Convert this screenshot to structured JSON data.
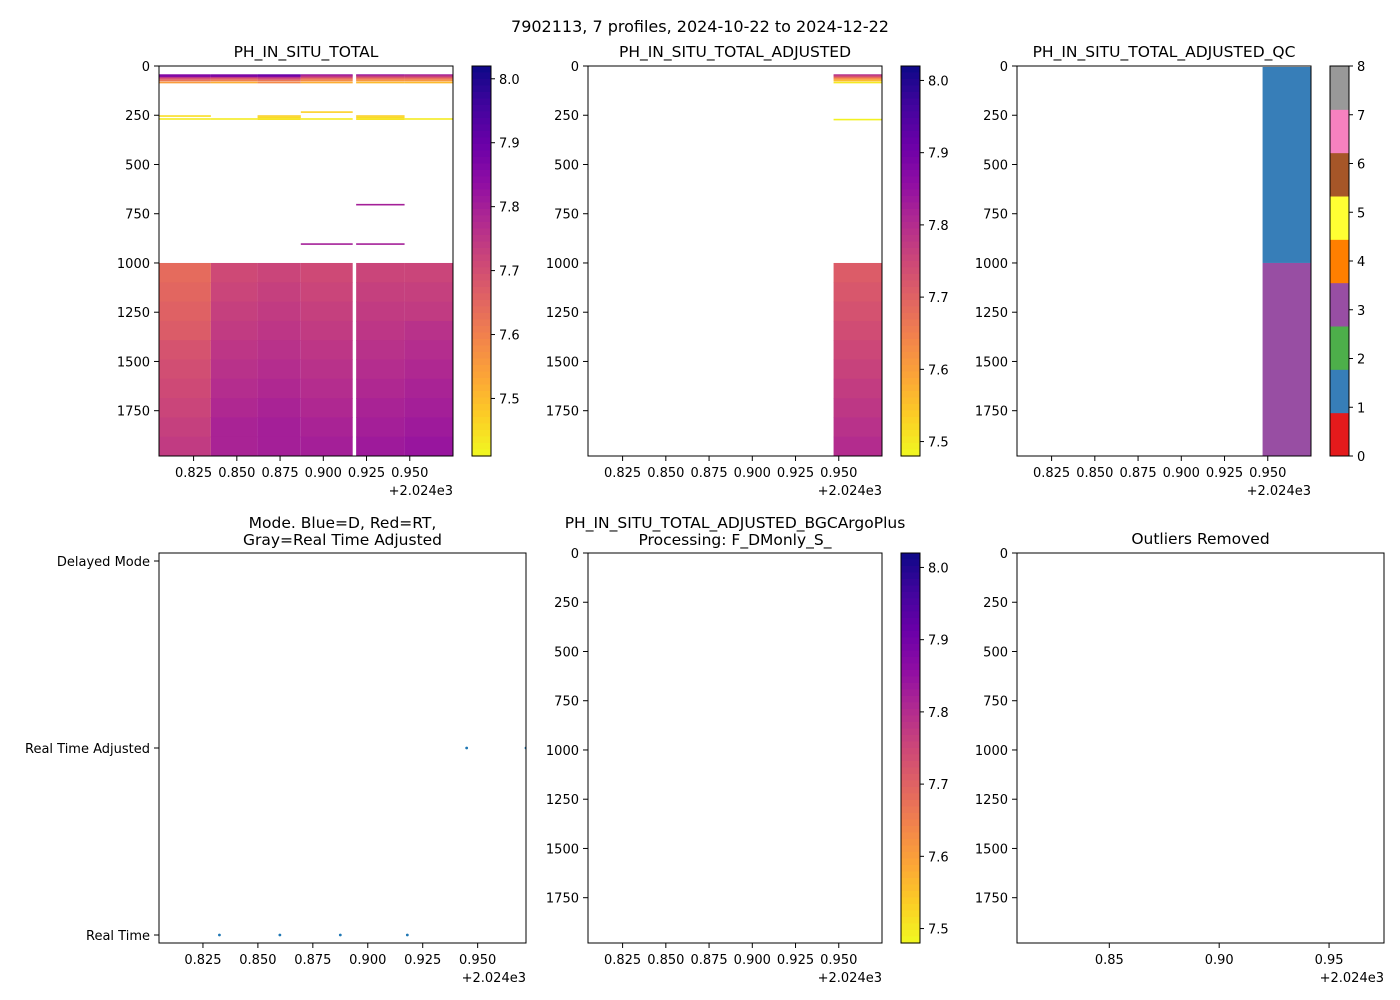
{
  "figure": {
    "suptitle": "7902113, 7 profiles, 2024-10-22 to 2024-12-22",
    "x_offset_label": "+2.024e3"
  },
  "chart_data": [
    {
      "id": "p1",
      "type": "heatmap",
      "title": "PH_IN_SITU_TOTAL",
      "xlim": [
        0.805,
        0.975
      ],
      "ylim": [
        1980,
        0
      ],
      "x_ticks": [
        "0.825",
        "0.850",
        "0.875",
        "0.900",
        "0.925",
        "0.950"
      ],
      "x_tick_values": [
        0.825,
        0.85,
        0.875,
        0.9,
        0.925,
        0.95
      ],
      "y_ticks": [
        "0",
        "250",
        "500",
        "750",
        "1000",
        "1250",
        "1500",
        "1750"
      ],
      "y_tick_values": [
        0,
        250,
        500,
        750,
        1000,
        1250,
        1500,
        1750
      ],
      "colorbar": {
        "cmap": "plasma_r",
        "vmin": 7.41,
        "vmax": 8.02,
        "ticks": [
          "7.5",
          "7.6",
          "7.7",
          "7.8",
          "7.9",
          "8.0"
        ],
        "tick_values": [
          7.5,
          7.6,
          7.7,
          7.8,
          7.9,
          8.0
        ]
      },
      "profiles": [
        {
          "x0": 0.805,
          "x1": 0.835,
          "lines": [
            [
              42,
              7.85
            ],
            [
              48,
              7.87
            ],
            [
              55,
              7.75
            ],
            [
              62,
              7.68
            ],
            [
              70,
              7.62
            ],
            [
              80,
              7.55
            ],
            [
              250,
              7.45
            ],
            [
              265,
              7.43
            ]
          ],
          "deep": [
            7.64,
            7.65,
            7.66,
            7.67,
            7.69,
            7.7,
            7.71,
            7.72,
            7.73,
            7.74
          ]
        },
        {
          "x0": 0.835,
          "x1": 0.862,
          "lines": [
            [
              42,
              7.86
            ],
            [
              48,
              7.88
            ],
            [
              55,
              7.74
            ],
            [
              62,
              7.66
            ],
            [
              70,
              7.6
            ],
            [
              80,
              7.52
            ],
            [
              265,
              7.43
            ]
          ],
          "deep": [
            7.71,
            7.72,
            7.73,
            7.74,
            7.75,
            7.76,
            7.77,
            7.78,
            7.79,
            7.79
          ]
        },
        {
          "x0": 0.862,
          "x1": 0.887,
          "lines": [
            [
              42,
              7.9
            ],
            [
              48,
              7.88
            ],
            [
              55,
              7.76
            ],
            [
              62,
              7.7
            ],
            [
              70,
              7.62
            ],
            [
              80,
              7.58
            ],
            [
              250,
              7.47
            ],
            [
              258,
              7.45
            ],
            [
              266,
              7.44
            ]
          ],
          "deep": [
            7.72,
            7.73,
            7.74,
            7.75,
            7.76,
            7.77,
            7.78,
            7.79,
            7.8,
            7.8
          ]
        },
        {
          "x0": 0.887,
          "x1": 0.917,
          "lines": [
            [
              42,
              7.82
            ],
            [
              48,
              7.76
            ],
            [
              55,
              7.7
            ],
            [
              62,
              7.63
            ],
            [
              70,
              7.58
            ],
            [
              80,
              7.52
            ],
            [
              230,
              7.47
            ],
            [
              265,
              7.43
            ],
            [
              900,
              7.8
            ]
          ],
          "deep": [
            7.71,
            7.72,
            7.73,
            7.74,
            7.75,
            7.76,
            7.77,
            7.78,
            7.79,
            7.8
          ]
        },
        {
          "x0": 0.919,
          "x1": 0.947,
          "lines": [
            [
              42,
              7.82
            ],
            [
              48,
              7.74
            ],
            [
              55,
              7.68
            ],
            [
              62,
              7.62
            ],
            [
              70,
              7.56
            ],
            [
              80,
              7.5
            ],
            [
              250,
              7.47
            ],
            [
              258,
              7.45
            ],
            [
              266,
              7.44
            ],
            [
              700,
              7.8
            ],
            [
              900,
              7.8
            ]
          ],
          "deep": [
            7.72,
            7.73,
            7.74,
            7.75,
            7.76,
            7.77,
            7.78,
            7.79,
            7.8,
            7.81
          ]
        },
        {
          "x0": 0.947,
          "x1": 0.975,
          "lines": [
            [
              42,
              7.8
            ],
            [
              48,
              7.74
            ],
            [
              55,
              7.68
            ],
            [
              62,
              7.62
            ],
            [
              70,
              7.56
            ],
            [
              80,
              7.5
            ],
            [
              265,
              7.43
            ]
          ],
          "deep": [
            7.72,
            7.73,
            7.74,
            7.76,
            7.77,
            7.78,
            7.79,
            7.8,
            7.81,
            7.82
          ]
        }
      ]
    },
    {
      "id": "p2",
      "type": "heatmap",
      "title": "PH_IN_SITU_TOTAL_ADJUSTED",
      "xlim": [
        0.805,
        0.975
      ],
      "ylim": [
        1980,
        0
      ],
      "x_ticks": [
        "0.825",
        "0.850",
        "0.875",
        "0.900",
        "0.925",
        "0.950"
      ],
      "x_tick_values": [
        0.825,
        0.85,
        0.875,
        0.9,
        0.925,
        0.95
      ],
      "y_ticks": [
        "0",
        "250",
        "500",
        "750",
        "1000",
        "1250",
        "1500",
        "1750"
      ],
      "y_tick_values": [
        0,
        250,
        500,
        750,
        1000,
        1250,
        1500,
        1750
      ],
      "colorbar": {
        "cmap": "plasma_r",
        "vmin": 7.48,
        "vmax": 8.02,
        "ticks": [
          "7.5",
          "7.6",
          "7.7",
          "7.8",
          "7.9",
          "8.0"
        ],
        "tick_values": [
          7.5,
          7.6,
          7.7,
          7.8,
          7.9,
          8.0
        ]
      },
      "profiles": [
        {
          "x0": 0.947,
          "x1": 0.975,
          "lines": [
            [
              42,
              7.8
            ],
            [
              48,
              7.74
            ],
            [
              55,
              7.68
            ],
            [
              62,
              7.62
            ],
            [
              70,
              7.56
            ],
            [
              80,
              7.5
            ],
            [
              268,
              7.49
            ]
          ],
          "deep": [
            7.71,
            7.72,
            7.73,
            7.74,
            7.75,
            7.76,
            7.77,
            7.78,
            7.79,
            7.8
          ]
        }
      ]
    },
    {
      "id": "p3",
      "type": "heatmap",
      "title": "PH_IN_SITU_TOTAL_ADJUSTED_QC",
      "xlim": [
        0.805,
        0.975
      ],
      "ylim": [
        1980,
        0
      ],
      "x_ticks": [
        "0.825",
        "0.850",
        "0.875",
        "0.900",
        "0.925",
        "0.950"
      ],
      "x_tick_values": [
        0.825,
        0.85,
        0.875,
        0.9,
        0.925,
        0.95
      ],
      "y_ticks": [
        "0",
        "250",
        "500",
        "750",
        "1000",
        "1250",
        "1500",
        "1750"
      ],
      "y_tick_values": [
        0,
        250,
        500,
        750,
        1000,
        1250,
        1500,
        1750
      ],
      "qc_blocks": [
        {
          "x0": 0.947,
          "x1": 0.975,
          "y0": 5,
          "y1": 1000,
          "flag": 1
        },
        {
          "x0": 0.947,
          "x1": 0.975,
          "y0": 1000,
          "y1": 1980,
          "flag": 3
        }
      ],
      "colorbar": {
        "type": "discrete",
        "colors": [
          "#e41a1c",
          "#377eb8",
          "#4daf4a",
          "#984ea3",
          "#ff7f00",
          "#ffff33",
          "#a65628",
          "#f781bf",
          "#999999"
        ],
        "ticks": [
          "0",
          "1",
          "2",
          "3",
          "4",
          "5",
          "6",
          "7",
          "8"
        ]
      }
    },
    {
      "id": "p4",
      "type": "scatter",
      "title": "Mode. Blue=D, Red=RT,",
      "title2": "Gray=Real Time Adjusted",
      "xlim": [
        0.805,
        0.972
      ],
      "ylim": [
        0,
        2
      ],
      "x_ticks": [
        "0.825",
        "0.850",
        "0.875",
        "0.900",
        "0.925",
        "0.950"
      ],
      "x_tick_values": [
        0.825,
        0.85,
        0.875,
        0.9,
        0.925,
        0.95
      ],
      "y_ticks": [
        "Real Time",
        "Real Time Adjusted",
        "Delayed Mode"
      ],
      "y_tick_values": [
        0,
        1,
        2
      ],
      "points": [
        {
          "x": 0.8325,
          "y": 0
        },
        {
          "x": 0.86,
          "y": 0
        },
        {
          "x": 0.8875,
          "y": 0
        },
        {
          "x": 0.918,
          "y": 0
        },
        {
          "x": 0.945,
          "y": 1
        },
        {
          "x": 0.972,
          "y": 1
        }
      ]
    },
    {
      "id": "p5",
      "type": "heatmap",
      "title": "PH_IN_SITU_TOTAL_ADJUSTED_BGCArgoPlus",
      "title2": "Processing: F_DMonly_S_",
      "xlim": [
        0.805,
        0.975
      ],
      "ylim": [
        1980,
        0
      ],
      "x_ticks": [
        "0.825",
        "0.850",
        "0.875",
        "0.900",
        "0.925",
        "0.950"
      ],
      "x_tick_values": [
        0.825,
        0.85,
        0.875,
        0.9,
        0.925,
        0.95
      ],
      "y_ticks": [
        "0",
        "250",
        "500",
        "750",
        "1000",
        "1250",
        "1500",
        "1750"
      ],
      "y_tick_values": [
        0,
        250,
        500,
        750,
        1000,
        1250,
        1500,
        1750
      ],
      "colorbar": {
        "cmap": "plasma_r",
        "vmin": 7.48,
        "vmax": 8.02,
        "ticks": [
          "7.5",
          "7.6",
          "7.7",
          "7.8",
          "7.9",
          "8.0"
        ],
        "tick_values": [
          7.5,
          7.6,
          7.7,
          7.8,
          7.9,
          8.0
        ]
      },
      "profiles": []
    },
    {
      "id": "p6",
      "type": "heatmap",
      "title": "Outliers Removed",
      "xlim": [
        0.808,
        0.975
      ],
      "ylim": [
        1980,
        0
      ],
      "x_ticks": [
        "0.85",
        "0.90",
        "0.95"
      ],
      "x_tick_values": [
        0.85,
        0.9,
        0.95
      ],
      "y_ticks": [
        "0",
        "250",
        "500",
        "750",
        "1000",
        "1250",
        "1500",
        "1750"
      ],
      "y_tick_values": [
        0,
        250,
        500,
        750,
        1000,
        1250,
        1500,
        1750
      ],
      "profiles": []
    }
  ]
}
